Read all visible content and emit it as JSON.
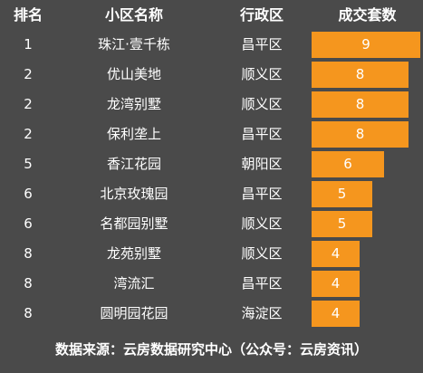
{
  "header": {
    "rank": "排名",
    "name": "小区名称",
    "district": "行政区",
    "count": "成交套数"
  },
  "colors": {
    "bar": "#f5961e",
    "background": "#4a4a4a",
    "text": "#ffffff"
  },
  "max_count": 9,
  "rows": [
    {
      "rank": "1",
      "name": "珠江·壹千栋",
      "district": "昌平区",
      "count": 9
    },
    {
      "rank": "2",
      "name": "优山美地",
      "district": "顺义区",
      "count": 8
    },
    {
      "rank": "2",
      "name": "龙湾别墅",
      "district": "顺义区",
      "count": 8
    },
    {
      "rank": "2",
      "name": "保利垄上",
      "district": "昌平区",
      "count": 8
    },
    {
      "rank": "5",
      "name": "香江花园",
      "district": "朝阳区",
      "count": 6
    },
    {
      "rank": "6",
      "name": "北京玫瑰园",
      "district": "昌平区",
      "count": 5
    },
    {
      "rank": "6",
      "name": "名都园别墅",
      "district": "顺义区",
      "count": 5
    },
    {
      "rank": "8",
      "name": "龙苑别墅",
      "district": "顺义区",
      "count": 4
    },
    {
      "rank": "8",
      "name": "湾流汇",
      "district": "昌平区",
      "count": 4
    },
    {
      "rank": "8",
      "name": "圆明园花园",
      "district": "海淀区",
      "count": 4
    }
  ],
  "footer": "数据来源：云房数据研究中心（公众号：云房资讯）"
}
